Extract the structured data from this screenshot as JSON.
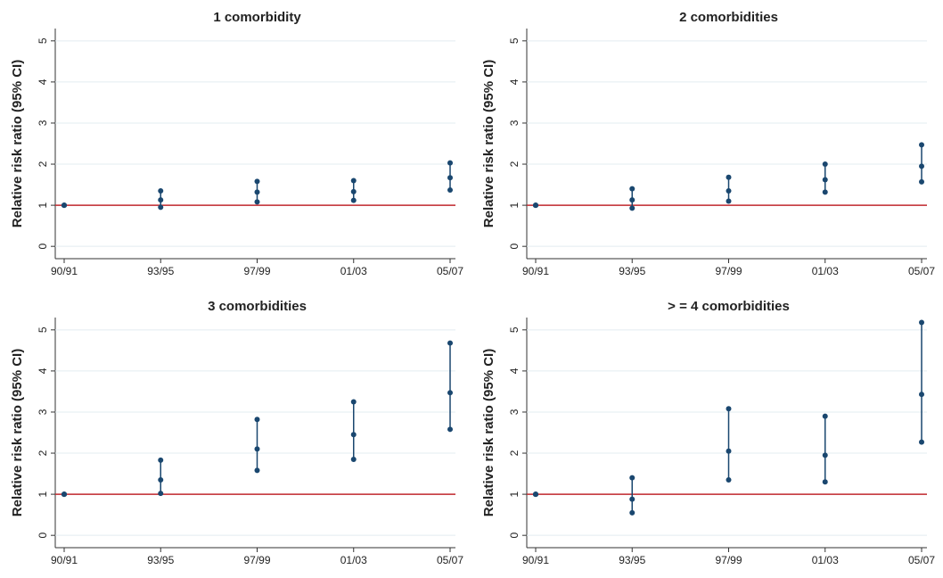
{
  "chart_data": [
    {
      "type": "errorbar",
      "title": "1 comorbidity",
      "y_label": "Relative risk ratio (95% CI)",
      "categories": [
        "90/91",
        "93/95",
        "97/99",
        "01/03",
        "05/07"
      ],
      "values": [
        1,
        1.13,
        1.32,
        1.33,
        1.67
      ],
      "lower": [
        1,
        0.95,
        1.08,
        1.12,
        1.37
      ],
      "upper": [
        1,
        1.35,
        1.58,
        1.6,
        2.03
      ],
      "color": "#1a476f",
      "reference": 1,
      "reference_color": "#c0282d",
      "ylim": [
        -0.3,
        5.3
      ],
      "yticks": [
        0,
        1,
        2,
        3,
        4,
        5
      ],
      "grid": true
    },
    {
      "type": "errorbar",
      "title": "2 comorbidities",
      "y_label": "Relative risk ratio (95% CI)",
      "categories": [
        "90/91",
        "93/95",
        "97/99",
        "01/03",
        "05/07"
      ],
      "values": [
        1,
        1.13,
        1.35,
        1.62,
        1.95
      ],
      "lower": [
        1,
        0.93,
        1.1,
        1.32,
        1.57
      ],
      "upper": [
        1,
        1.4,
        1.68,
        2.0,
        2.47
      ],
      "color": "#1a476f",
      "reference": 1,
      "reference_color": "#c0282d",
      "ylim": [
        -0.3,
        5.3
      ],
      "yticks": [
        0,
        1,
        2,
        3,
        4,
        5
      ],
      "grid": true
    },
    {
      "type": "errorbar",
      "title": "3 comorbidities",
      "y_label": "Relative risk ratio (95% CI)",
      "categories": [
        "90/91",
        "93/95",
        "97/99",
        "01/03",
        "05/07"
      ],
      "values": [
        1,
        1.35,
        2.1,
        2.45,
        3.47
      ],
      "lower": [
        1,
        1.02,
        1.58,
        1.85,
        2.58
      ],
      "upper": [
        1,
        1.83,
        2.82,
        3.25,
        4.68
      ],
      "color": "#1a476f",
      "reference": 1,
      "reference_color": "#c0282d",
      "ylim": [
        -0.3,
        5.3
      ],
      "yticks": [
        0,
        1,
        2,
        3,
        4,
        5
      ],
      "grid": true
    },
    {
      "type": "errorbar",
      "title": "> = 4 comorbidities",
      "y_label": "Relative risk ratio (95% CI)",
      "categories": [
        "90/91",
        "93/95",
        "97/99",
        "01/03",
        "05/07"
      ],
      "values": [
        1,
        0.88,
        2.05,
        1.95,
        3.43
      ],
      "lower": [
        1,
        0.55,
        1.35,
        1.3,
        2.27
      ],
      "upper": [
        1,
        1.4,
        3.08,
        2.9,
        5.18
      ],
      "color": "#1a476f",
      "reference": 1,
      "reference_color": "#c0282d",
      "ylim": [
        -0.3,
        5.3
      ],
      "yticks": [
        0,
        1,
        2,
        3,
        4,
        5
      ],
      "grid": true
    }
  ]
}
